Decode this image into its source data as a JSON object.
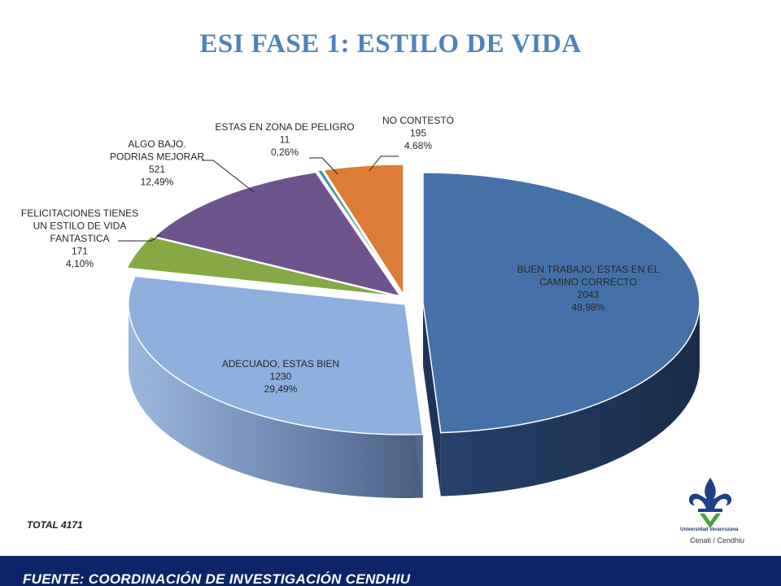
{
  "title": "ESI FASE 1:  ESTILO DE VIDA",
  "total_label": "TOTAL 4171",
  "footer": "FUENTE:  COORDINACIÓN DE  INVESTIGACIÓN CENDHIU",
  "logo": {
    "caption_line1": "Universidad Veracruzana",
    "caption_line2": "Cenati / Cendhiu"
  },
  "chart_data": {
    "type": "pie",
    "style": "3d-exploded",
    "slices": [
      {
        "label": [
          "BUEN TRABAJO, ESTAS  EN EL",
          "CAMINO CORRECTO"
        ],
        "value": 2043,
        "percent_text": "48,98%",
        "color": "#4472a8",
        "side_color": "#1e3456"
      },
      {
        "label": [
          "ADECUADO, ESTAS BIEN"
        ],
        "value": 1230,
        "percent_text": "29,49%",
        "color": "#8db0de",
        "side_color": "#53698c"
      },
      {
        "label": [
          "FELICITACIONES TIENES",
          "UN ESTILO DE VIDA",
          "FANTASTICA"
        ],
        "value": 171,
        "percent_text": "4,10%",
        "color": "#86a845",
        "side_color": "#4f6525"
      },
      {
        "label": [
          "ALGO BAJO.",
          "PODRIAS MEJORAR"
        ],
        "value": 521,
        "percent_text": "12,49%",
        "color": "#6e548e",
        "side_color": "#3e2f52"
      },
      {
        "label": [
          "ESTAS EN  ZONA  DE PELIGRO"
        ],
        "value": 11,
        "percent_text": "0,26%",
        "color": "#3d96ad",
        "side_color": "#205a68"
      },
      {
        "label": [
          "NO CONTESTÓ"
        ],
        "value": 195,
        "percent_text": "4.68%",
        "color": "#db7d36",
        "side_color": "#8a4a1b"
      }
    ]
  }
}
